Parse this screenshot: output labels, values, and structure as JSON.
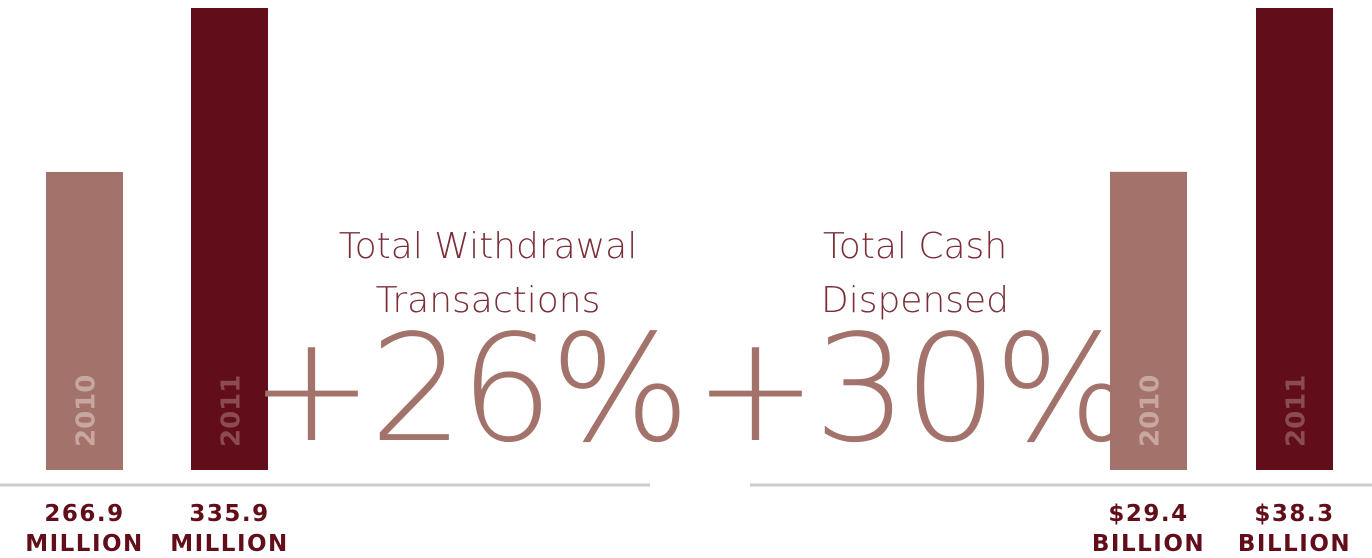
{
  "chart_data": [
    {
      "type": "bar",
      "title": [
        "Total Withdrawal",
        "Transactions"
      ],
      "annotation": "+26%",
      "categories": [
        "2010",
        "2011"
      ],
      "values": [
        266.9,
        335.9
      ],
      "unit_label": "MILLION",
      "colors": [
        "#a3736b",
        "#620d1a"
      ],
      "ylim": [
        141.5,
        335.9
      ]
    },
    {
      "type": "bar",
      "title": [
        "Total Cash",
        "Dispensed"
      ],
      "annotation": "+30%",
      "categories": [
        "2010",
        "2011"
      ],
      "values": [
        29.4,
        38.3
      ],
      "value_labels": [
        "$29.4",
        "$38.3"
      ],
      "unit_label": "BILLION",
      "colors": [
        "#a3736b",
        "#620d1a"
      ],
      "ylim": [
        13.2,
        38.3
      ]
    }
  ]
}
